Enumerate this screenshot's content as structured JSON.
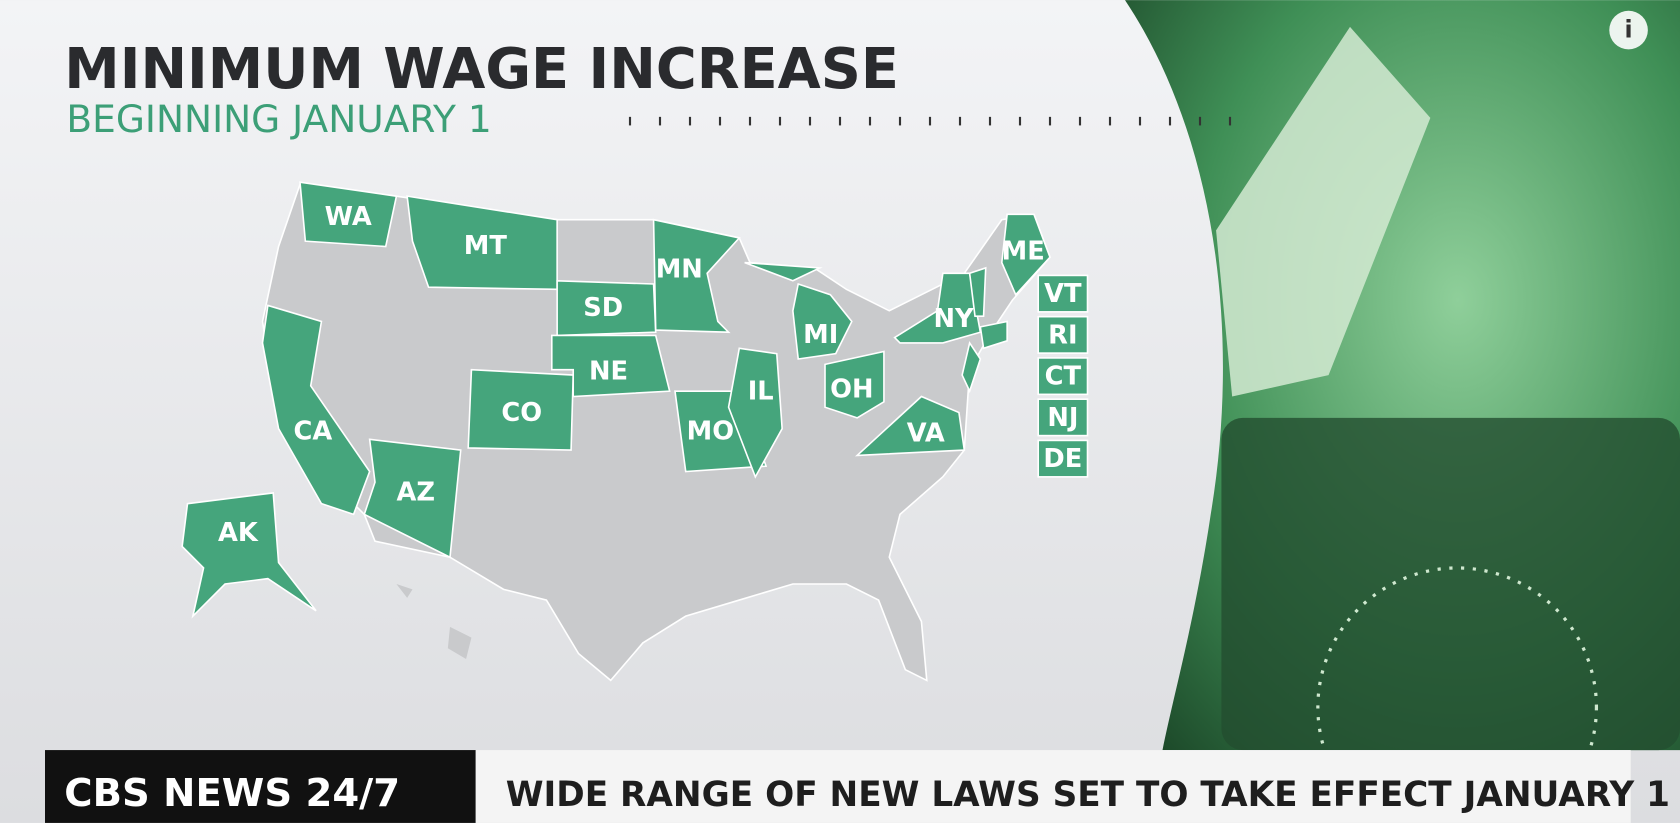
{
  "header": {
    "title": "MINIMUM WAGE INCREASE",
    "subtitle": "BEGINNING JANUARY 1"
  },
  "map": {
    "states": [
      "WA",
      "MT",
      "MN",
      "SD",
      "NE",
      "MI",
      "NY",
      "ME",
      "OH",
      "IL",
      "MO",
      "VA",
      "CO",
      "CA",
      "AZ",
      "AK"
    ],
    "small_states": [
      "VT",
      "RI",
      "CT",
      "NJ",
      "DE"
    ]
  },
  "banner": {
    "logo": "CBS NEWS 24/7",
    "headline": "WIDE RANGE OF NEW LAWS SET TO TAKE EFFECT JANUARY 1"
  },
  "info_icon": "i"
}
